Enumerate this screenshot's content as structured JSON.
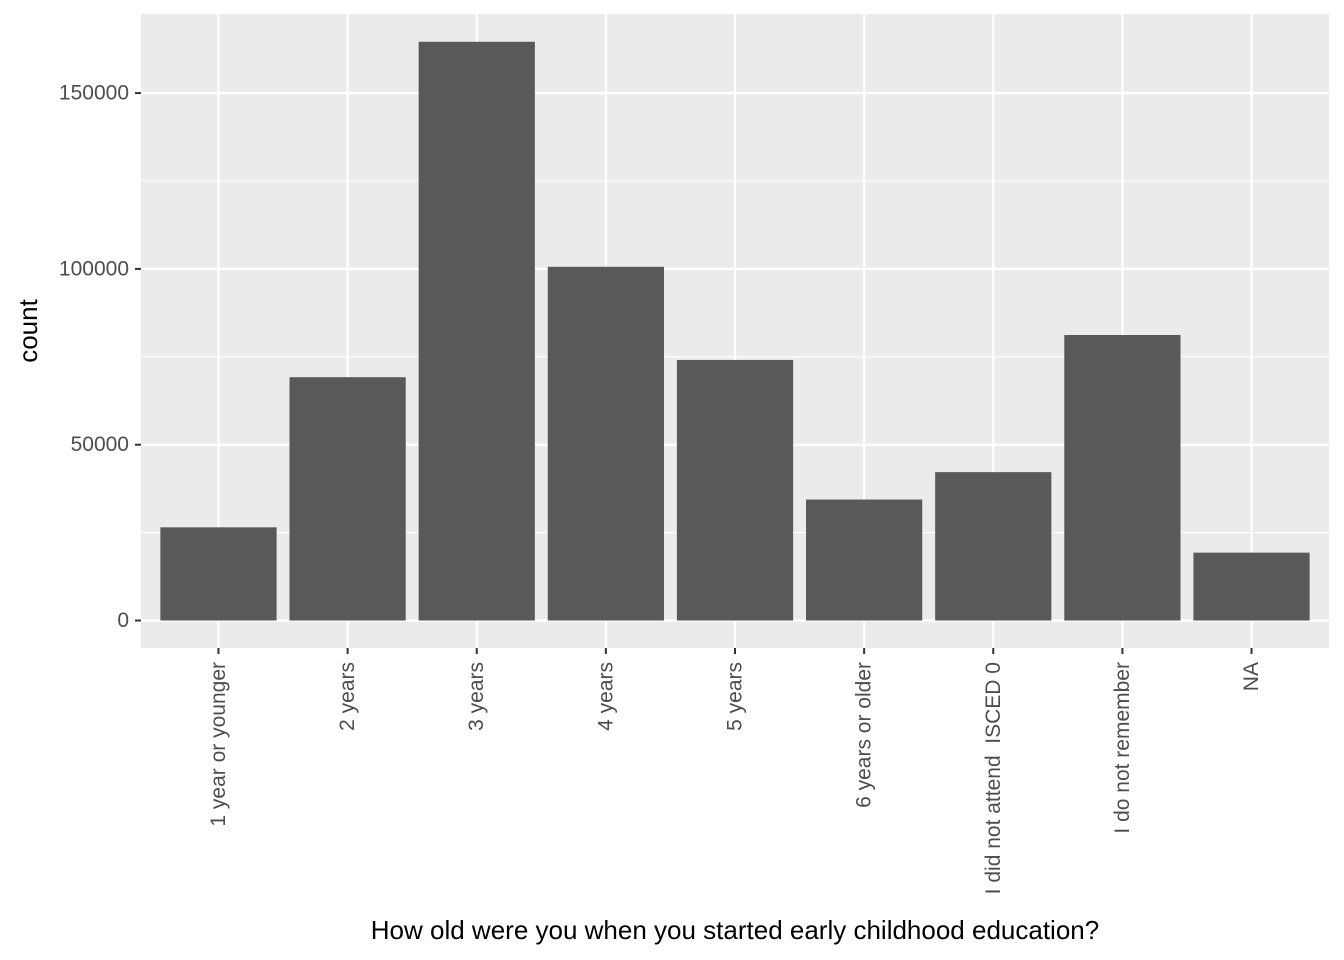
{
  "chart_data": {
    "type": "bar",
    "title": "",
    "xlabel": "How old were you when you started early childhood education?",
    "ylabel": "count",
    "categories": [
      "1 year or younger",
      "2 years",
      "3 years",
      "4 years",
      "5 years",
      "6 years or older",
      "I did not attend  ISCED 0",
      "I do not remember",
      "NA"
    ],
    "values": [
      26500,
      69200,
      164600,
      100600,
      74100,
      34400,
      42200,
      81200,
      19300
    ],
    "ylim": [
      -7800,
      172500
    ],
    "yticks": [
      0,
      50000,
      100000,
      150000
    ],
    "ytick_labels": [
      "0",
      "50000",
      "100000",
      "150000"
    ],
    "grid": true,
    "colors": {
      "panel": "#ebebeb",
      "grid_major": "#ffffff",
      "bar": "#595959"
    }
  }
}
